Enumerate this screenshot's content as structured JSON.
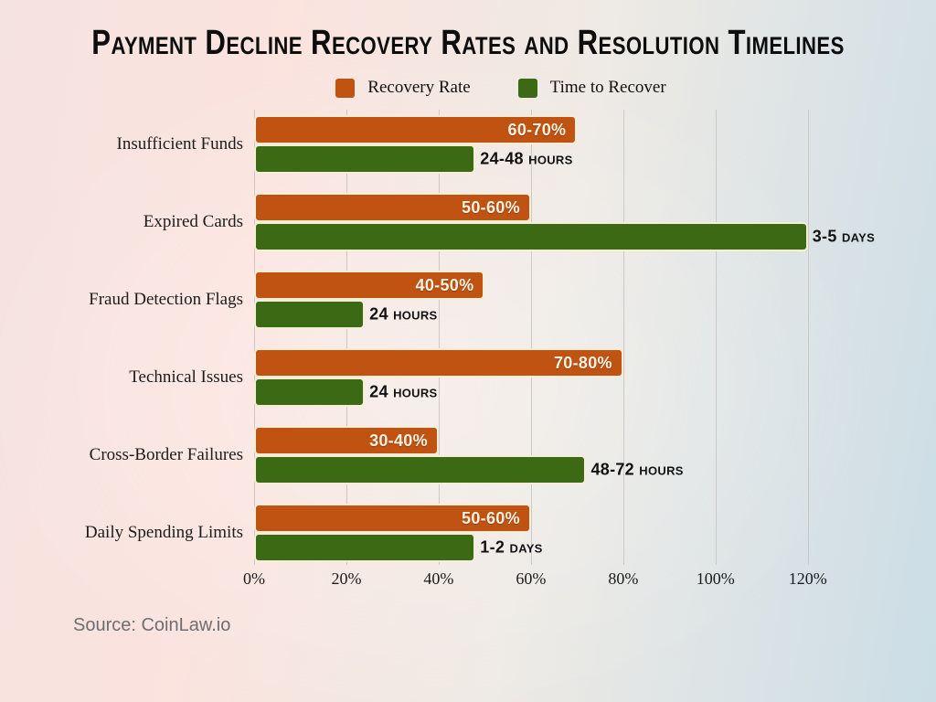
{
  "title": "Payment Decline Recovery Rates and Resolution Timelines",
  "source": "Source: CoinLaw.io",
  "colors": {
    "recovery_bar": "#C05212",
    "time_bar": "#3C6A14",
    "bar_outline": "#F6EDD9",
    "inside_label_text": "#F8F1E2",
    "outside_label_text": "#121212",
    "gridline": "#CDC8C3",
    "source_text": "#6E6E72",
    "background_left": "#F5E3E0",
    "background_right": "#CBDDE6"
  },
  "legend": [
    {
      "label": "Recovery Rate",
      "color": "#C05212"
    },
    {
      "label": "Time to Recover",
      "color": "#3C6A14"
    }
  ],
  "chart_data": {
    "type": "bar",
    "orientation": "horizontal",
    "title": "Payment Decline Recovery Rates and Resolution Timelines",
    "categories": [
      "Insufficient Funds",
      "Expired Cards",
      "Fraud Detection Flags",
      "Technical Issues",
      "Cross-Border Failures",
      "Daily Spending Limits"
    ],
    "x_ticks": [
      "0%",
      "20%",
      "40%",
      "60%",
      "80%",
      "100%",
      "120%"
    ],
    "axis_max": 125,
    "xlabel": "",
    "ylabel": "",
    "grid": "vertical",
    "legend_position": "top",
    "series": [
      {
        "name": "Recovery Rate",
        "color": "#C05212",
        "values": [
          70,
          60,
          50,
          80,
          40,
          60
        ],
        "labels": [
          "60-70%",
          "50-60%",
          "40-50%",
          "70-80%",
          "30-40%",
          "50-60%"
        ],
        "label_placement": "inside-end"
      },
      {
        "name": "Time to Recover",
        "color": "#3C6A14",
        "values": [
          48,
          120,
          24,
          24,
          72,
          48
        ],
        "labels": [
          "24-48 hours",
          "3-5 days",
          "24 hours",
          "24 hours",
          "48-72 hours",
          "1-2 days"
        ],
        "label_placement": "outside-end",
        "note": "values are bar lengths read off the percent axis"
      }
    ]
  }
}
